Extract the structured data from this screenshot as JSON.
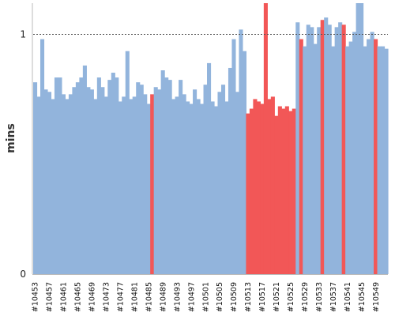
{
  "chart_data": {
    "type": "area",
    "title": "",
    "ylabel": "mins",
    "xlabel": "",
    "ylim": [
      0,
      1.13
    ],
    "yticks": [
      0,
      1
    ],
    "reference_line": 1,
    "grid": false,
    "colors": {
      "normal": "#92B4DC",
      "failed": "#F25757",
      "axis": "#bbbbbb",
      "reference": "#555555"
    },
    "x_tick_labels": [
      "#10453",
      "#10457",
      "#10461",
      "#10465",
      "#10469",
      "#10473",
      "#10477",
      "#10481",
      "#10485",
      "#10489",
      "#10493",
      "#10497",
      "#10501",
      "#10505",
      "#10509",
      "#10513",
      "#10517",
      "#10521",
      "#10525",
      "#10529",
      "#10533",
      "#10537",
      "#10541",
      "#10545",
      "#10549"
    ],
    "builds": [
      {
        "x": "#10453",
        "y": 0.8,
        "s": "ok"
      },
      {
        "x": "#10454",
        "y": 0.74,
        "s": "ok"
      },
      {
        "x": "#10455",
        "y": 0.98,
        "s": "ok"
      },
      {
        "x": "#10456",
        "y": 0.77,
        "s": "ok"
      },
      {
        "x": "#10457",
        "y": 0.76,
        "s": "ok"
      },
      {
        "x": "#10458",
        "y": 0.73,
        "s": "ok"
      },
      {
        "x": "#10459",
        "y": 0.82,
        "s": "ok"
      },
      {
        "x": "#10460",
        "y": 0.82,
        "s": "ok"
      },
      {
        "x": "#10461",
        "y": 0.75,
        "s": "ok"
      },
      {
        "x": "#10462",
        "y": 0.73,
        "s": "ok"
      },
      {
        "x": "#10463",
        "y": 0.75,
        "s": "ok"
      },
      {
        "x": "#10464",
        "y": 0.78,
        "s": "ok"
      },
      {
        "x": "#10465",
        "y": 0.8,
        "s": "ok"
      },
      {
        "x": "#10466",
        "y": 0.82,
        "s": "ok"
      },
      {
        "x": "#10467",
        "y": 0.87,
        "s": "ok"
      },
      {
        "x": "#10468",
        "y": 0.78,
        "s": "ok"
      },
      {
        "x": "#10469",
        "y": 0.77,
        "s": "ok"
      },
      {
        "x": "#10470",
        "y": 0.73,
        "s": "ok"
      },
      {
        "x": "#10471",
        "y": 0.82,
        "s": "ok"
      },
      {
        "x": "#10472",
        "y": 0.78,
        "s": "ok"
      },
      {
        "x": "#10473",
        "y": 0.74,
        "s": "ok"
      },
      {
        "x": "#10474",
        "y": 0.81,
        "s": "ok"
      },
      {
        "x": "#10475",
        "y": 0.84,
        "s": "ok"
      },
      {
        "x": "#10476",
        "y": 0.82,
        "s": "ok"
      },
      {
        "x": "#10477",
        "y": 0.72,
        "s": "ok"
      },
      {
        "x": "#10478",
        "y": 0.74,
        "s": "ok"
      },
      {
        "x": "#10479",
        "y": 0.93,
        "s": "ok"
      },
      {
        "x": "#10480",
        "y": 0.73,
        "s": "ok"
      },
      {
        "x": "#10481",
        "y": 0.74,
        "s": "ok"
      },
      {
        "x": "#10482",
        "y": 0.8,
        "s": "ok"
      },
      {
        "x": "#10483",
        "y": 0.79,
        "s": "ok"
      },
      {
        "x": "#10484",
        "y": 0.75,
        "s": "ok"
      },
      {
        "x": "#10485",
        "y": 0.71,
        "s": "ok"
      },
      {
        "x": "#10486",
        "y": 0.75,
        "s": "fail"
      },
      {
        "x": "#10487",
        "y": 0.78,
        "s": "ok"
      },
      {
        "x": "#10488",
        "y": 0.77,
        "s": "ok"
      },
      {
        "x": "#10489",
        "y": 0.85,
        "s": "ok"
      },
      {
        "x": "#10490",
        "y": 0.82,
        "s": "ok"
      },
      {
        "x": "#10491",
        "y": 0.81,
        "s": "ok"
      },
      {
        "x": "#10492",
        "y": 0.73,
        "s": "ok"
      },
      {
        "x": "#10493",
        "y": 0.74,
        "s": "ok"
      },
      {
        "x": "#10494",
        "y": 0.81,
        "s": "ok"
      },
      {
        "x": "#10495",
        "y": 0.75,
        "s": "ok"
      },
      {
        "x": "#10496",
        "y": 0.72,
        "s": "ok"
      },
      {
        "x": "#10497",
        "y": 0.71,
        "s": "ok"
      },
      {
        "x": "#10498",
        "y": 0.77,
        "s": "ok"
      },
      {
        "x": "#10499",
        "y": 0.73,
        "s": "ok"
      },
      {
        "x": "#10500",
        "y": 0.71,
        "s": "ok"
      },
      {
        "x": "#10501",
        "y": 0.79,
        "s": "ok"
      },
      {
        "x": "#10502",
        "y": 0.88,
        "s": "ok"
      },
      {
        "x": "#10503",
        "y": 0.72,
        "s": "ok"
      },
      {
        "x": "#10504",
        "y": 0.7,
        "s": "ok"
      },
      {
        "x": "#10505",
        "y": 0.76,
        "s": "ok"
      },
      {
        "x": "#10506",
        "y": 0.79,
        "s": "ok"
      },
      {
        "x": "#10507",
        "y": 0.72,
        "s": "ok"
      },
      {
        "x": "#10508",
        "y": 0.86,
        "s": "ok"
      },
      {
        "x": "#10509",
        "y": 0.98,
        "s": "ok"
      },
      {
        "x": "#10510",
        "y": 0.76,
        "s": "ok"
      },
      {
        "x": "#10511",
        "y": 1.02,
        "s": "ok"
      },
      {
        "x": "#10512",
        "y": 0.93,
        "s": "ok"
      },
      {
        "x": "#10513",
        "y": 0.67,
        "s": "fail"
      },
      {
        "x": "#10514",
        "y": 0.69,
        "s": "fail"
      },
      {
        "x": "#10515",
        "y": 0.73,
        "s": "fail"
      },
      {
        "x": "#10516",
        "y": 0.72,
        "s": "fail"
      },
      {
        "x": "#10517",
        "y": 0.71,
        "s": "fail"
      },
      {
        "x": "#10518",
        "y": 1.15,
        "s": "fail"
      },
      {
        "x": "#10519",
        "y": 0.73,
        "s": "fail"
      },
      {
        "x": "#10520",
        "y": 0.74,
        "s": "fail"
      },
      {
        "x": "#10521",
        "y": 0.66,
        "s": "fail"
      },
      {
        "x": "#10522",
        "y": 0.7,
        "s": "fail"
      },
      {
        "x": "#10523",
        "y": 0.69,
        "s": "fail"
      },
      {
        "x": "#10524",
        "y": 0.7,
        "s": "fail"
      },
      {
        "x": "#10525",
        "y": 0.68,
        "s": "fail"
      },
      {
        "x": "#10526",
        "y": 0.69,
        "s": "fail"
      },
      {
        "x": "#10527",
        "y": 1.05,
        "s": "ok"
      },
      {
        "x": "#10528",
        "y": 0.98,
        "s": "fail"
      },
      {
        "x": "#10529",
        "y": 0.95,
        "s": "ok"
      },
      {
        "x": "#10530",
        "y": 1.04,
        "s": "ok"
      },
      {
        "x": "#10531",
        "y": 1.03,
        "s": "ok"
      },
      {
        "x": "#10532",
        "y": 0.96,
        "s": "ok"
      },
      {
        "x": "#10533",
        "y": 1.03,
        "s": "ok"
      },
      {
        "x": "#10534",
        "y": 1.06,
        "s": "fail"
      },
      {
        "x": "#10535",
        "y": 1.07,
        "s": "ok"
      },
      {
        "x": "#10536",
        "y": 1.04,
        "s": "ok"
      },
      {
        "x": "#10537",
        "y": 0.95,
        "s": "ok"
      },
      {
        "x": "#10538",
        "y": 1.03,
        "s": "ok"
      },
      {
        "x": "#10539",
        "y": 1.05,
        "s": "ok"
      },
      {
        "x": "#10540",
        "y": 1.04,
        "s": "fail"
      },
      {
        "x": "#10541",
        "y": 0.95,
        "s": "ok"
      },
      {
        "x": "#10542",
        "y": 0.97,
        "s": "ok"
      },
      {
        "x": "#10543",
        "y": 1.01,
        "s": "ok"
      },
      {
        "x": "#10544",
        "y": 1.15,
        "s": "ok"
      },
      {
        "x": "#10545",
        "y": 1.15,
        "s": "ok"
      },
      {
        "x": "#10546",
        "y": 0.95,
        "s": "ok"
      },
      {
        "x": "#10547",
        "y": 0.98,
        "s": "ok"
      },
      {
        "x": "#10548",
        "y": 1.01,
        "s": "ok"
      },
      {
        "x": "#10549",
        "y": 0.98,
        "s": "fail"
      },
      {
        "x": "#10550",
        "y": 0.95,
        "s": "ok"
      },
      {
        "x": "#10551",
        "y": 0.95,
        "s": "ok"
      },
      {
        "x": "#10552",
        "y": 0.94,
        "s": "ok"
      }
    ]
  }
}
